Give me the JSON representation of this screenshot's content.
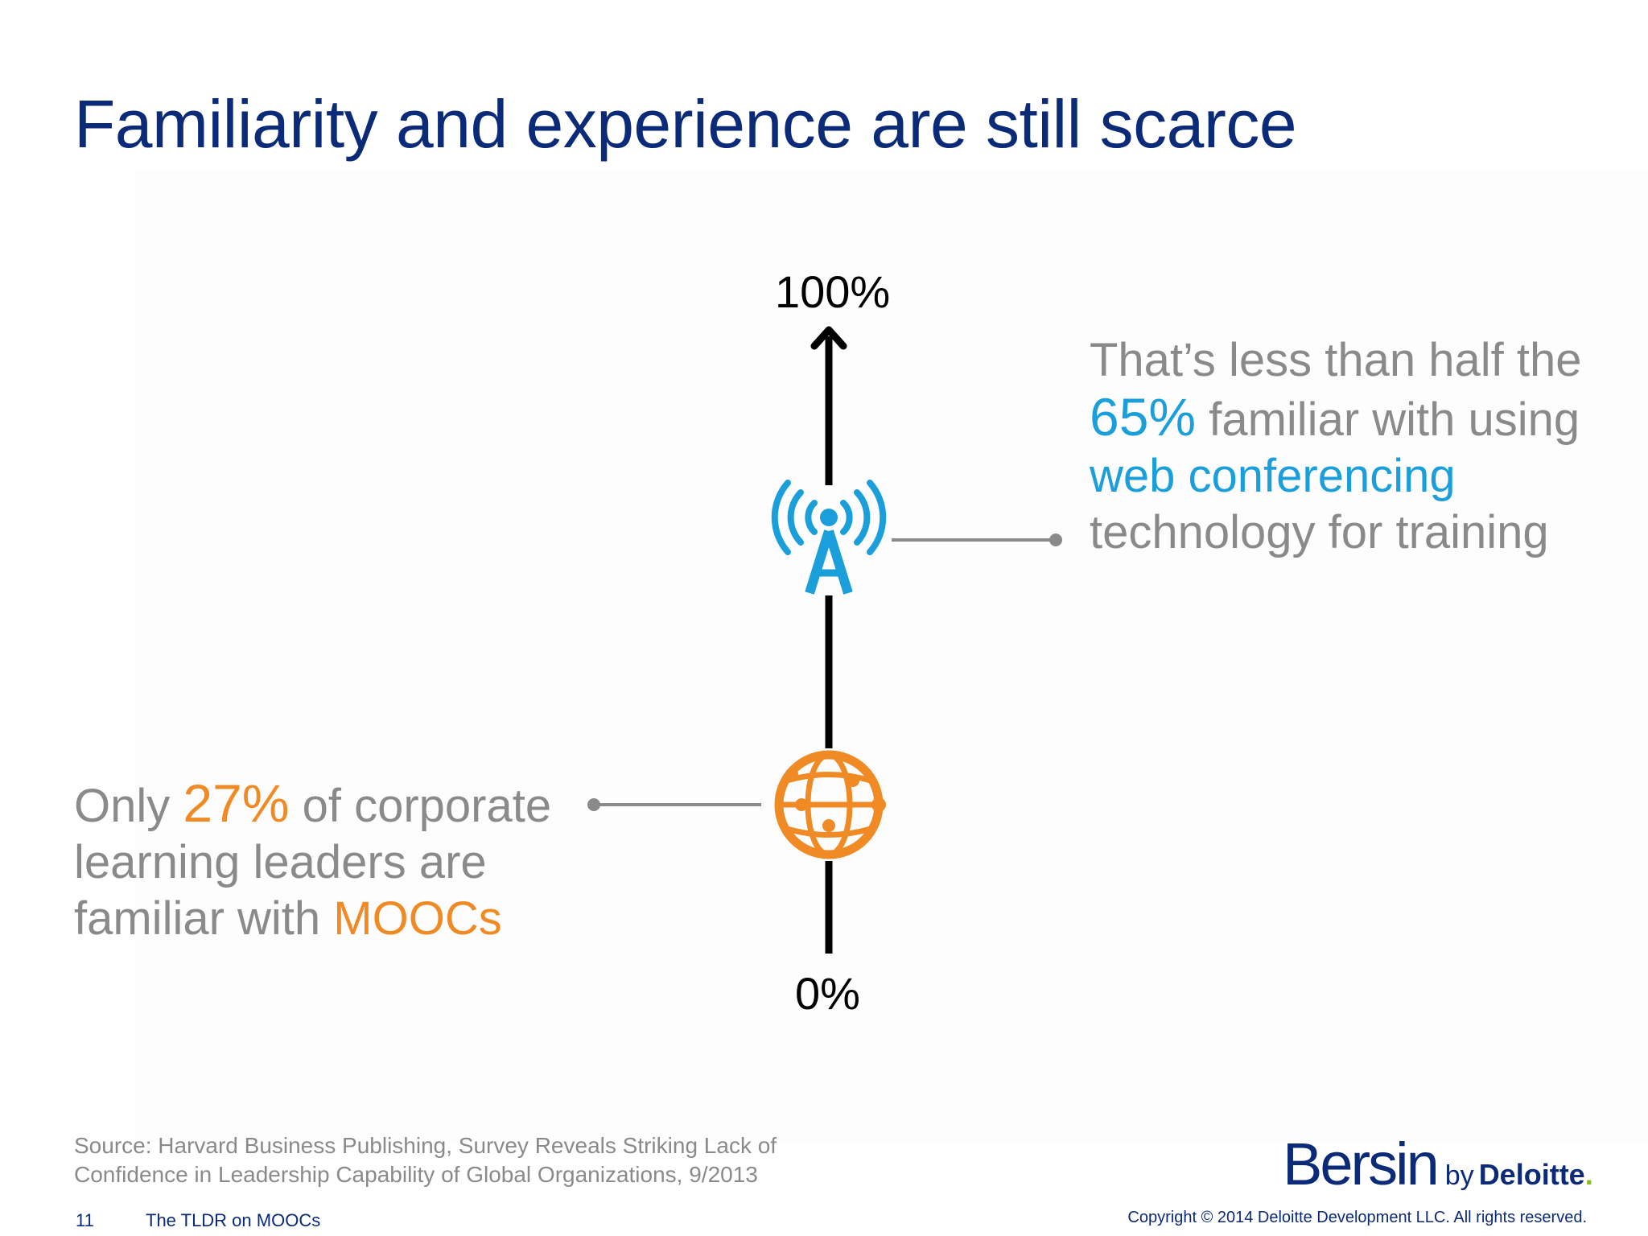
{
  "slide": {
    "title": "Familiarity and experience are still scarce",
    "page_number": "11",
    "footer_title": "The TLDR on MOOCs",
    "copyright": "Copyright © 2014 Deloitte Development LLC. All rights reserved."
  },
  "axis": {
    "top_label": "100%",
    "bottom_label": "0%"
  },
  "markers": [
    {
      "icon": "radio-tower-icon",
      "value": 65,
      "color": "#1a9fdb",
      "callout": {
        "line1": "That’s less than half the",
        "highlight": "65%",
        "line2_rest": " familiar with using",
        "line3": "web conferencing",
        "line4": "technology for training"
      }
    },
    {
      "icon": "globe-network-icon",
      "value": 27,
      "color": "#f08a24",
      "callout": {
        "prefix": "Only ",
        "highlight": "27%",
        "line1_rest": " of corporate",
        "line2": "learning leaders are",
        "line3_prefix": "familiar with ",
        "line3_highlight": "MOOCs"
      }
    }
  ],
  "source": {
    "line1": "Source: Harvard Business Publishing, Survey Reveals Striking Lack of",
    "line2": "Confidence in Leadership Capability of Global Organizations, 9/2013"
  },
  "logo": {
    "brand": "Bersin",
    "by": "by",
    "company": "Deloitte",
    "dot": "."
  },
  "colors": {
    "title": "#0b2a78",
    "text_gray": "#8a8a8c",
    "accent_blue": "#1a9fdb",
    "accent_orange": "#f08a24",
    "deloitte_green": "#86bc25"
  }
}
